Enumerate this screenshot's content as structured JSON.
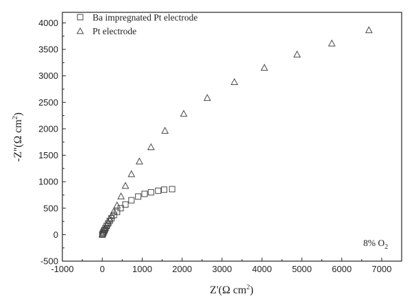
{
  "chart_data": {
    "type": "scatter",
    "xlabel": "Z'(Ω cm²)",
    "ylabel": "-Z\"(Ω cm²)",
    "xlim": [
      -1000,
      7500
    ],
    "ylim": [
      -500,
      4200
    ],
    "xticks": [
      -1000,
      0,
      1000,
      2000,
      3000,
      4000,
      5000,
      6000,
      7000
    ],
    "yticks": [
      -500,
      0,
      500,
      1000,
      1500,
      2000,
      2500,
      3000,
      3500,
      4000
    ],
    "legend_position": "top-left",
    "grid": false,
    "annotation": "8% O2",
    "series": [
      {
        "name": "Ba impregnated Pt electrode",
        "marker": "square",
        "x": [
          0,
          10,
          20,
          35,
          55,
          80,
          110,
          145,
          185,
          230,
          290,
          370,
          460,
          580,
          730,
          900,
          1060,
          1220,
          1400,
          1550,
          1750
        ],
        "y": [
          0,
          15,
          35,
          60,
          90,
          125,
          165,
          210,
          260,
          310,
          370,
          430,
          500,
          570,
          650,
          720,
          770,
          800,
          830,
          850,
          860
        ]
      },
      {
        "name": "Pt electrode",
        "marker": "triangle",
        "x": [
          0,
          20,
          40,
          60,
          80,
          110,
          145,
          185,
          230,
          290,
          370,
          470,
          580,
          730,
          930,
          1220,
          1570,
          2040,
          2630,
          3310,
          4060,
          4880,
          5750,
          6680
        ],
        "y": [
          0,
          30,
          60,
          95,
          130,
          175,
          225,
          285,
          350,
          440,
          550,
          720,
          920,
          1140,
          1380,
          1650,
          1960,
          2280,
          2580,
          2880,
          3150,
          3400,
          3610,
          3860
        ]
      }
    ]
  }
}
